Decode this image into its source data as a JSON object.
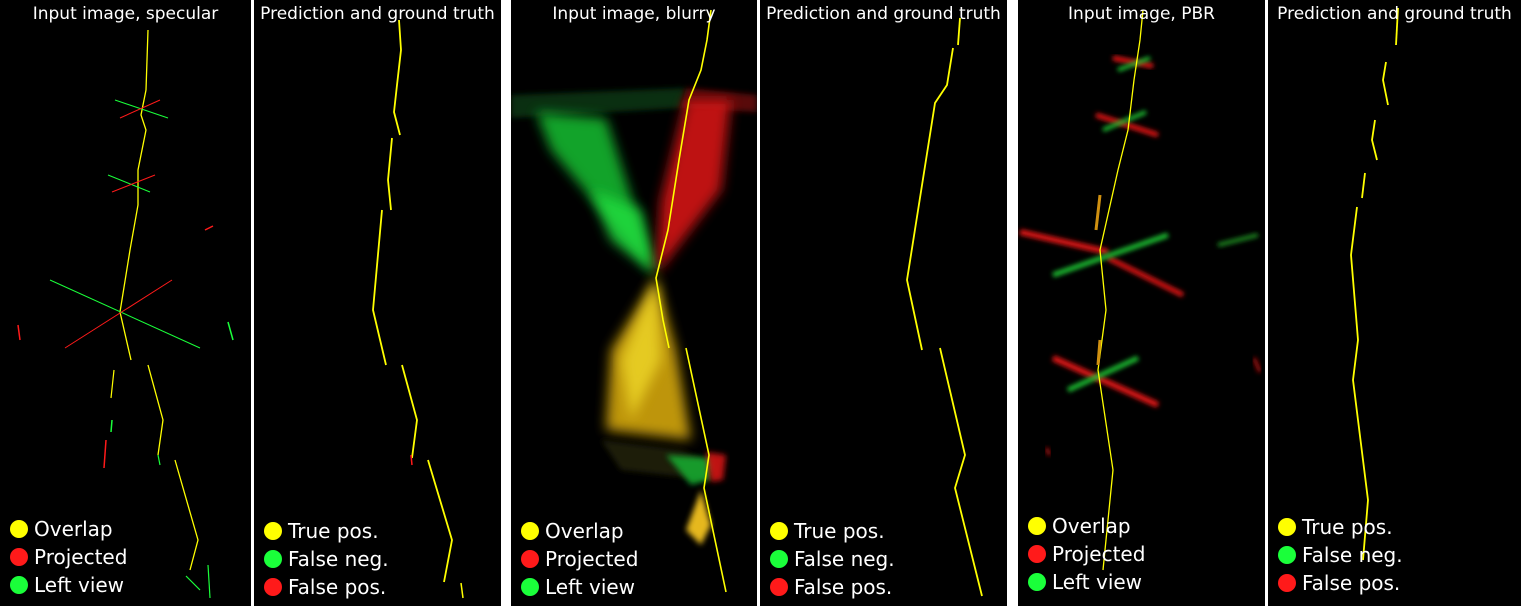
{
  "colors": {
    "yellow": "#ffff00",
    "red": "#ff1a1a",
    "green": "#1aff3a",
    "background": "#000000"
  },
  "panels": [
    {
      "title": "Input image, specular",
      "legend": [
        {
          "label": "Overlap",
          "color": "#ffff00"
        },
        {
          "label": "Projected",
          "color": "#ff1a1a"
        },
        {
          "label": "Left view",
          "color": "#1aff3a"
        }
      ]
    },
    {
      "title": "Prediction and ground truth",
      "legend": [
        {
          "label": "True pos.",
          "color": "#ffff00"
        },
        {
          "label": "False neg.",
          "color": "#1aff3a"
        },
        {
          "label": "False pos.",
          "color": "#ff1a1a"
        }
      ]
    },
    {
      "title": "Input image, blurry",
      "legend": [
        {
          "label": "Overlap",
          "color": "#ffff00"
        },
        {
          "label": "Projected",
          "color": "#ff1a1a"
        },
        {
          "label": "Left view",
          "color": "#1aff3a"
        }
      ]
    },
    {
      "title": "Prediction and ground truth",
      "legend": [
        {
          "label": "True pos.",
          "color": "#ffff00"
        },
        {
          "label": "False neg.",
          "color": "#1aff3a"
        },
        {
          "label": "False pos.",
          "color": "#ff1a1a"
        }
      ]
    },
    {
      "title": "Input image, PBR",
      "legend": [
        {
          "label": "Overlap",
          "color": "#ffff00"
        },
        {
          "label": "Projected",
          "color": "#ff1a1a"
        },
        {
          "label": "Left view",
          "color": "#1aff3a"
        }
      ]
    },
    {
      "title": "Prediction and ground truth",
      "legend": [
        {
          "label": "True pos.",
          "color": "#ffff00"
        },
        {
          "label": "False neg.",
          "color": "#1aff3a"
        },
        {
          "label": "False pos.",
          "color": "#ff1a1a"
        }
      ]
    }
  ]
}
